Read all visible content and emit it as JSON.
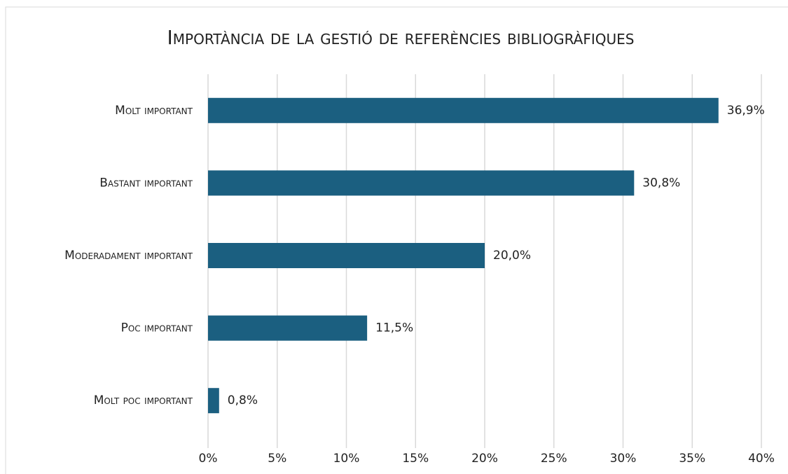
{
  "chart_data": {
    "type": "barh",
    "title": "Importància de la gestió de referències bibliogràfiques",
    "categories": [
      "Molt important",
      "Bastant important",
      "Moderadament important",
      "Poc important",
      "Molt poc important"
    ],
    "values": [
      36.9,
      30.8,
      20.0,
      11.5,
      0.8
    ],
    "value_labels": [
      "36,9%",
      "30,8%",
      "20,0%",
      "11,5%",
      "0,8%"
    ],
    "color": "#1b5f80",
    "xlim": [
      0,
      40
    ],
    "xticks": [
      {
        "value": 0,
        "label": "0%"
      },
      {
        "value": 5,
        "label": "5%"
      },
      {
        "value": 10,
        "label": "10%"
      },
      {
        "value": 15,
        "label": "15%"
      },
      {
        "value": 20,
        "label": "20%"
      },
      {
        "value": 25,
        "label": "25%"
      },
      {
        "value": 30,
        "label": "30%"
      },
      {
        "value": 35,
        "label": "35%"
      },
      {
        "value": 40,
        "label": "40%"
      }
    ],
    "grid": true
  }
}
